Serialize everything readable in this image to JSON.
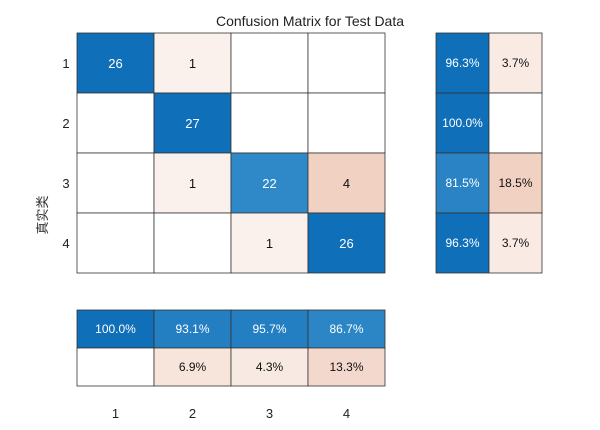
{
  "chart_data": {
    "type": "heatmap",
    "title": "Confusion Matrix for Test Data",
    "ylabel": "真实类",
    "xlabel": "",
    "classes": [
      "1",
      "2",
      "3",
      "4"
    ],
    "matrix": [
      [
        26,
        1,
        null,
        null
      ],
      [
        null,
        27,
        null,
        null
      ],
      [
        null,
        1,
        22,
        4
      ],
      [
        null,
        null,
        1,
        26
      ]
    ],
    "row_summary": {
      "correct": [
        "96.3%",
        "100.0%",
        "81.5%",
        "96.3%"
      ],
      "incorrect": [
        "3.7%",
        "",
        "18.5%",
        "3.7%"
      ]
    },
    "column_summary": {
      "correct": [
        "100.0%",
        "93.1%",
        "95.7%",
        "86.7%"
      ],
      "incorrect": [
        "",
        "6.9%",
        "4.3%",
        "13.3%"
      ]
    },
    "colors": {
      "correct_high": "#0f6fb8",
      "correct_mid": "#2f88c8",
      "incorrect_high": "#f0d1c2",
      "incorrect_low": "#fbf1ec",
      "empty": "#ffffff",
      "grid": "#333333"
    }
  }
}
